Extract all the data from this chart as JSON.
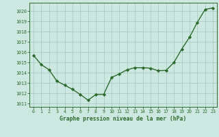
{
  "x": [
    0,
    1,
    2,
    3,
    4,
    5,
    6,
    7,
    8,
    9,
    10,
    11,
    12,
    13,
    14,
    15,
    16,
    17,
    18,
    19,
    20,
    21,
    22,
    23
  ],
  "y": [
    1015.7,
    1014.8,
    1014.3,
    1013.2,
    1012.8,
    1012.4,
    1011.9,
    1011.35,
    1011.9,
    1011.9,
    1013.55,
    1013.9,
    1014.3,
    1014.5,
    1014.5,
    1014.45,
    1014.2,
    1014.25,
    1015.0,
    1016.3,
    1017.45,
    1018.9,
    1020.15,
    1020.3
  ],
  "line_color": "#2d6a2d",
  "marker": "D",
  "marker_size": 2.2,
  "bg_color": "#cce8e0",
  "grid_color": "#aaccc4",
  "xlabel": "Graphe pression niveau de la mer (hPa)",
  "xlabel_color": "#2d6a2d",
  "tick_color": "#2d6a2d",
  "ylim": [
    1010.7,
    1020.8
  ],
  "xlim": [
    -0.5,
    23.5
  ],
  "yticks": [
    1011,
    1012,
    1013,
    1014,
    1015,
    1016,
    1017,
    1018,
    1019,
    1020
  ],
  "xticks": [
    0,
    1,
    2,
    3,
    4,
    5,
    6,
    7,
    8,
    9,
    10,
    11,
    12,
    13,
    14,
    15,
    16,
    17,
    18,
    19,
    20,
    21,
    22,
    23
  ]
}
